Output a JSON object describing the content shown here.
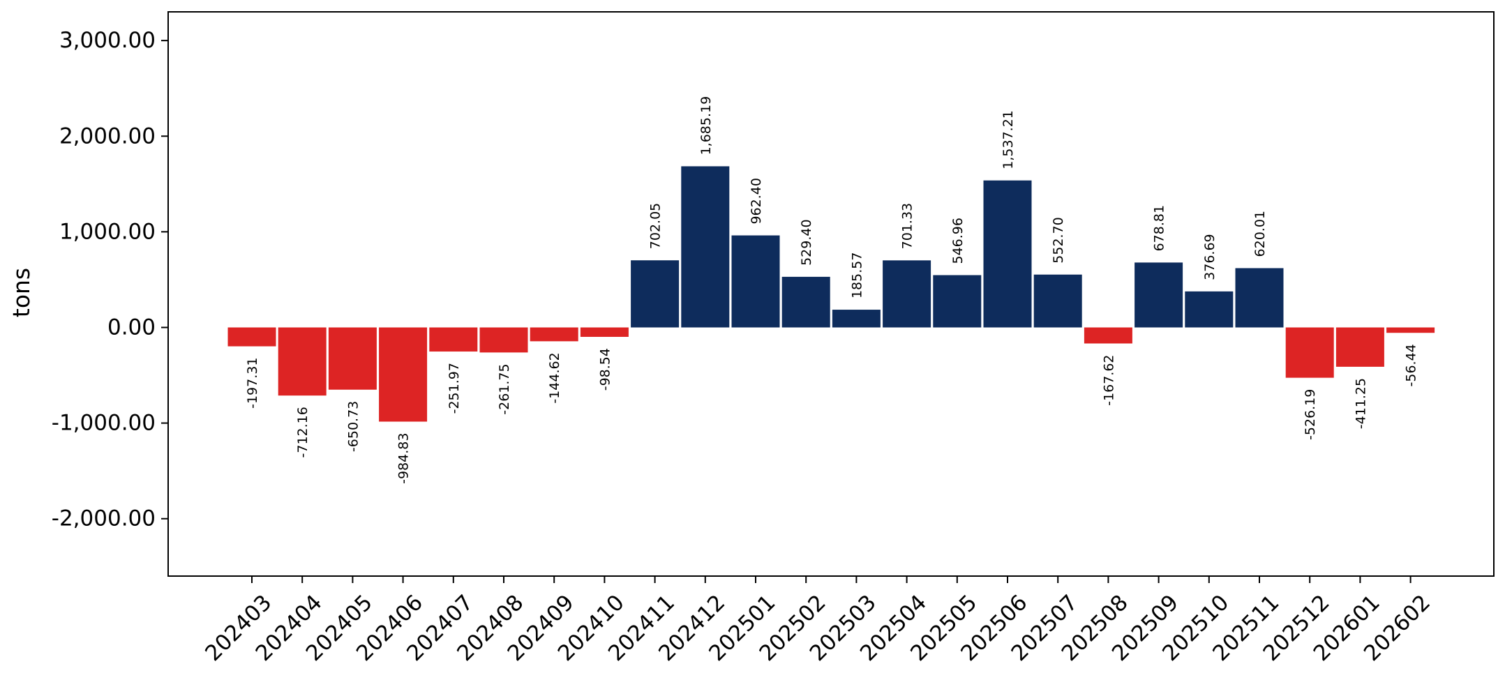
{
  "chart_data": {
    "type": "bar",
    "title": "",
    "xlabel": "",
    "ylabel": "tons",
    "ylim": [
      -2600,
      3300
    ],
    "yticks": [
      -2000,
      -1000,
      0,
      1000,
      2000,
      3000
    ],
    "ytick_labels": [
      "-2,000.00",
      "-1,000.00",
      "0.00",
      "1,000.00",
      "2,000.00",
      "3,000.00"
    ],
    "grid": false,
    "legend": "none",
    "colors": {
      "positive": "#0e2c5c",
      "negative": "#dd2424"
    },
    "categories": [
      "202403",
      "202404",
      "202405",
      "202406",
      "202407",
      "202408",
      "202409",
      "202410",
      "202411",
      "202412",
      "202501",
      "202502",
      "202503",
      "202504",
      "202505",
      "202506",
      "202507",
      "202508",
      "202509",
      "202510",
      "202511",
      "202512",
      "202601",
      "202602"
    ],
    "values": [
      -197.31,
      -712.16,
      -650.73,
      -984.83,
      -251.97,
      -261.75,
      -144.62,
      -98.54,
      702.05,
      1685.19,
      962.4,
      529.4,
      185.57,
      701.33,
      546.96,
      1537.21,
      552.7,
      -167.62,
      678.81,
      376.69,
      620.01,
      -526.19,
      -411.25,
      -56.44
    ],
    "data_labels": [
      "-197.31",
      "-712.16",
      "-650.73",
      "-984.83",
      "-251.97",
      "-261.75",
      "-144.62",
      "-98.54",
      "702.05",
      "1,685.19",
      "962.40",
      "529.40",
      "185.57",
      "701.33",
      "546.96",
      "1,537.21",
      "552.70",
      "-167.62",
      "678.81",
      "376.69",
      "620.01",
      "-526.19",
      "-411.25",
      "-56.44"
    ]
  }
}
